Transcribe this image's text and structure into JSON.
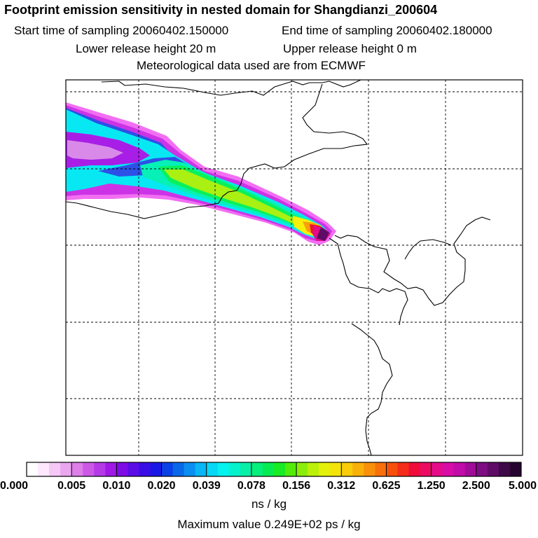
{
  "header": {
    "title": "Footprint emission sensitivity in nested domain for Shangdianzi_200604",
    "start_time": "Start time of sampling 20060402.150000",
    "end_time": "End time of sampling 20060402.180000",
    "lower_height": "Lower release height   20 m",
    "upper_height": "Upper release height    0 m",
    "met_data": "Meteorological data used are from ECMWF"
  },
  "colorbar": {
    "ticks": [
      "0.000",
      "0.005",
      "0.010",
      "0.020",
      "0.039",
      "0.078",
      "0.156",
      "0.312",
      "0.625",
      "1.250",
      "2.500",
      "5.000"
    ],
    "colors": [
      "#ffffff",
      "#fde8fd",
      "#f5c8f5",
      "#eaa6ef",
      "#dd7ee9",
      "#cc59e6",
      "#b53ae6",
      "#9f18e6",
      "#7d0ce6",
      "#5c0de6",
      "#3a0de6",
      "#1a18e6",
      "#0b40e6",
      "#0a68e8",
      "#0a8ef0",
      "#0ab6f5",
      "#08d8f5",
      "#06f2ee",
      "#06f2cc",
      "#06f0a8",
      "#06ee7c",
      "#06ec50",
      "#18ec24",
      "#52ec0a",
      "#8aee0a",
      "#bcf00a",
      "#e4f00a",
      "#f5e40a",
      "#f8cc0a",
      "#f8b00a",
      "#f8900a",
      "#f8700a",
      "#f6500c",
      "#f42c1a",
      "#f00c3a",
      "#ec0c62",
      "#e40c88",
      "#d80ca6",
      "#c00ca8",
      "#a00c98",
      "#7e0c82",
      "#5e0c66",
      "#3e0a48",
      "#260430"
    ],
    "unit": "ns / kg",
    "max_value": "Maximum value  0.249E+02 ps / kg"
  },
  "map": {
    "plume_colors": {
      "outer": "#f26ef2",
      "magenta": "#cc33e6",
      "purple": "#a81ee6",
      "violet": "#d98ae9",
      "blue": "#2d50e6",
      "cyan": "#08e8f2",
      "teal": "#06f0b8",
      "green": "#0af05a",
      "lime": "#aaf012",
      "yellow": "#f8f00a",
      "orange": "#f8a00a",
      "red": "#f0142c",
      "pink": "#e40c88",
      "dark": "#5e0c66"
    }
  }
}
